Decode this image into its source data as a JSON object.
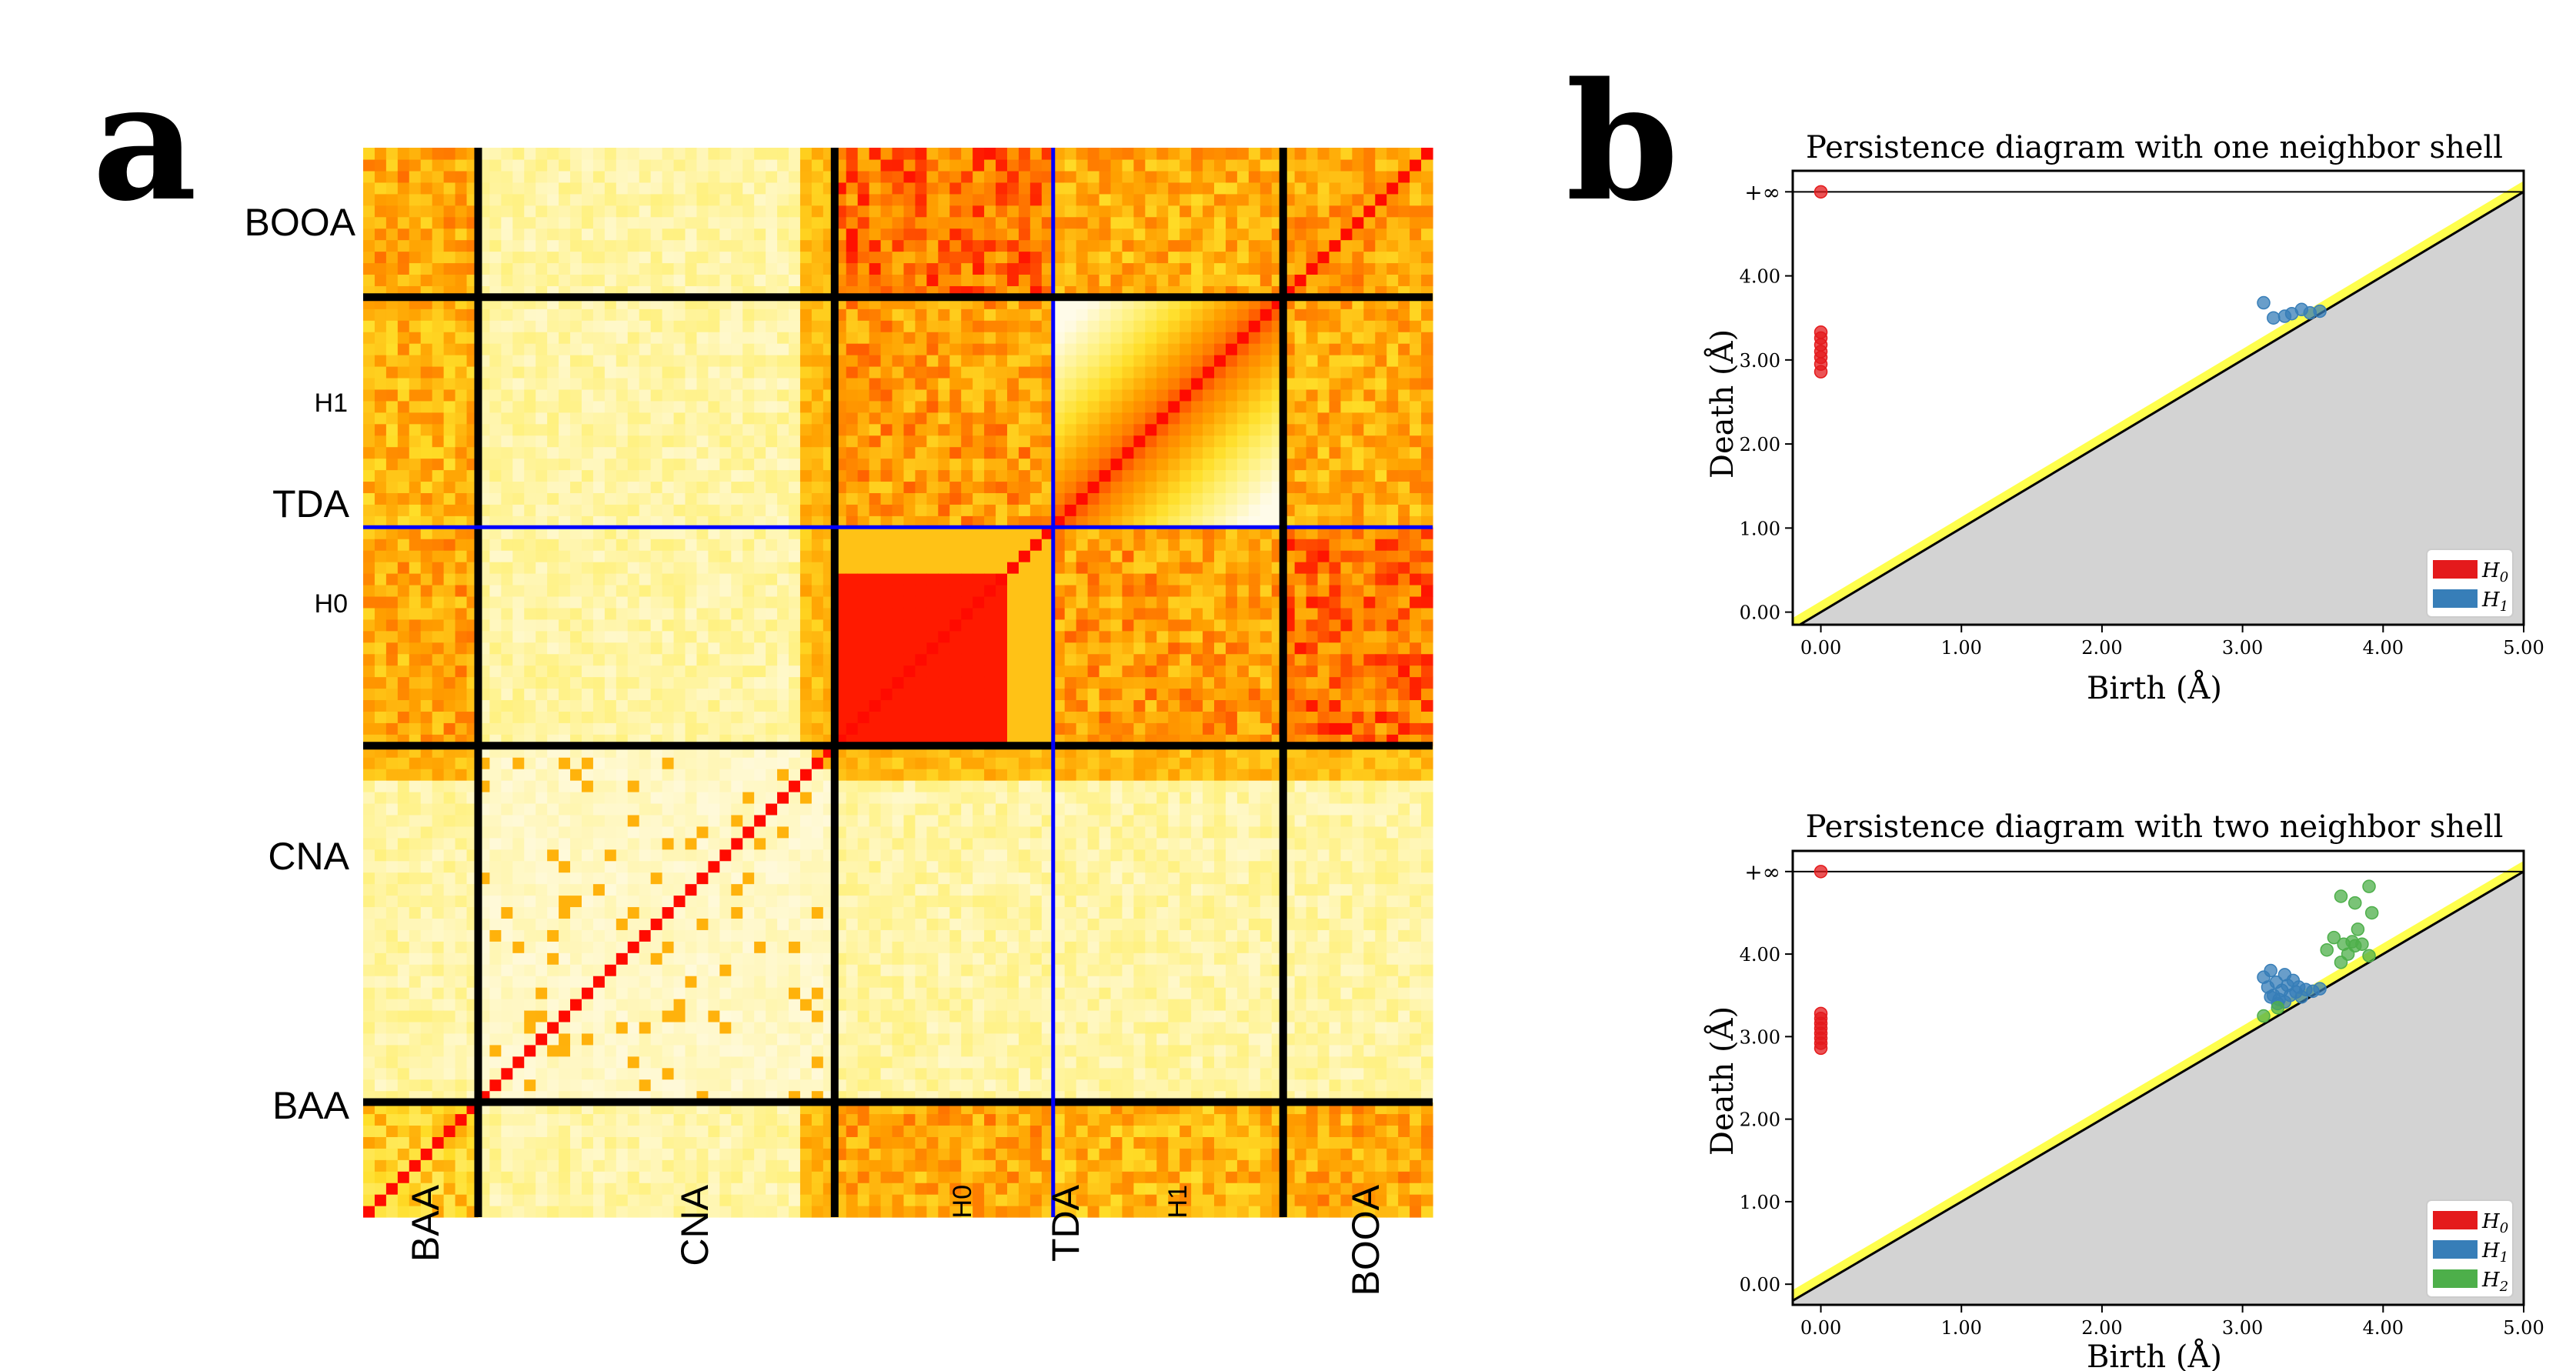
{
  "panel_a": {
    "letter": "a",
    "row_labels": {
      "booa": "BOOA",
      "h1": "H1",
      "tda": "TDA",
      "h0": "H0",
      "cna": "CNA",
      "baa": "BAA"
    },
    "col_labels": {
      "baa": "BAA",
      "cna": "CNA",
      "h0": "H0",
      "tda": "TDA",
      "h1": "H1",
      "booa": "BOOA"
    },
    "colors": {
      "low": "#fffbe9",
      "mid": "#ffe74a",
      "high": "#ff9500",
      "max": "#ff0a00",
      "separator": "#000000",
      "tda_separator": "#0000ff"
    }
  },
  "panel_b": {
    "letter": "b"
  },
  "chart_data": [
    {
      "type": "scatter",
      "title": "Persistence diagram with one neighbor shell",
      "xlabel": "Birth (Å)",
      "ylabel": "Death (Å)",
      "xlim": [
        -0.2,
        5.0
      ],
      "ylim": [
        -0.15,
        5.25
      ],
      "xticks": [
        "0.00",
        "1.00",
        "2.00",
        "3.00",
        "4.00",
        "5.00"
      ],
      "yticks": [
        "0.00",
        "1.00",
        "2.00",
        "3.00",
        "4.00"
      ],
      "inf_label": "+∞",
      "legend_position": "bottom-right",
      "series": [
        {
          "name": "H0",
          "color": "#e41a1c",
          "points": [
            [
              0,
              2.86
            ],
            [
              0,
              2.95
            ],
            [
              0,
              3.03
            ],
            [
              0,
              3.1
            ],
            [
              0,
              3.18
            ],
            [
              0,
              3.26
            ],
            [
              0,
              3.33
            ],
            [
              0,
              5.0
            ]
          ]
        },
        {
          "name": "H1",
          "color": "#377eb8",
          "points": [
            [
              3.15,
              3.68
            ],
            [
              3.22,
              3.5
            ],
            [
              3.3,
              3.52
            ],
            [
              3.35,
              3.55
            ],
            [
              3.42,
              3.6
            ],
            [
              3.48,
              3.56
            ],
            [
              3.55,
              3.58
            ]
          ]
        }
      ]
    },
    {
      "type": "scatter",
      "title": "Persistence diagram with two neighbor shell",
      "xlabel": "Birth (Å)",
      "ylabel": "Death (Å)",
      "xlim": [
        -0.2,
        5.0
      ],
      "ylim": [
        -0.25,
        5.25
      ],
      "xticks": [
        "0.00",
        "1.00",
        "2.00",
        "3.00",
        "4.00",
        "5.00"
      ],
      "yticks": [
        "0.00",
        "1.00",
        "2.00",
        "3.00",
        "4.00"
      ],
      "inf_label": "+∞",
      "legend_position": "bottom-right",
      "series": [
        {
          "name": "H0",
          "color": "#e41a1c",
          "points": [
            [
              0,
              2.86
            ],
            [
              0,
              2.92
            ],
            [
              0,
              2.98
            ],
            [
              0,
              3.04
            ],
            [
              0,
              3.1
            ],
            [
              0,
              3.16
            ],
            [
              0,
              3.22
            ],
            [
              0,
              3.28
            ],
            [
              0,
              5.0
            ]
          ]
        },
        {
          "name": "H1",
          "color": "#377eb8",
          "points": [
            [
              3.15,
              3.72
            ],
            [
              3.18,
              3.6
            ],
            [
              3.2,
              3.8
            ],
            [
              3.22,
              3.5
            ],
            [
              3.24,
              3.66
            ],
            [
              3.26,
              3.45
            ],
            [
              3.28,
              3.56
            ],
            [
              3.3,
              3.75
            ],
            [
              3.32,
              3.62
            ],
            [
              3.34,
              3.5
            ],
            [
              3.36,
              3.68
            ],
            [
              3.38,
              3.54
            ],
            [
              3.4,
              3.6
            ],
            [
              3.42,
              3.48
            ],
            [
              3.45,
              3.57
            ],
            [
              3.5,
              3.55
            ],
            [
              3.55,
              3.58
            ],
            [
              3.25,
              3.4
            ],
            [
              3.3,
              3.42
            ],
            [
              3.2,
              3.48
            ]
          ]
        },
        {
          "name": "H2",
          "color": "#4daf4a",
          "points": [
            [
              3.15,
              3.25
            ],
            [
              3.25,
              3.35
            ],
            [
              3.6,
              4.05
            ],
            [
              3.65,
              4.2
            ],
            [
              3.7,
              3.9
            ],
            [
              3.72,
              4.12
            ],
            [
              3.75,
              4.0
            ],
            [
              3.78,
              4.15
            ],
            [
              3.8,
              4.1
            ],
            [
              3.82,
              4.3
            ],
            [
              3.85,
              4.12
            ],
            [
              3.9,
              3.98
            ],
            [
              3.7,
              4.7
            ],
            [
              3.8,
              4.62
            ],
            [
              3.9,
              4.82
            ],
            [
              3.92,
              4.5
            ]
          ]
        }
      ]
    }
  ]
}
